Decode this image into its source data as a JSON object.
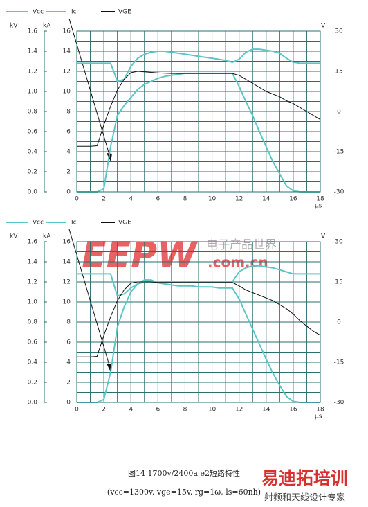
{
  "chart_data": [
    {
      "type": "line",
      "legend": [
        "Vcc",
        "Ic",
        "VGE"
      ],
      "ylabel": "kV",
      "y3label": "kA",
      "y2label": "V",
      "xlabel": "µs",
      "xlim": [
        0,
        18
      ],
      "xticks": [
        0,
        2,
        4,
        6,
        8,
        10,
        12,
        14,
        16,
        18
      ],
      "xminorticks": [
        1,
        3,
        5,
        7,
        9,
        11,
        13,
        15,
        17
      ],
      "ylim": [
        0,
        1.6
      ],
      "yticks": [
        {
          "value": 0,
          "label": "0.0"
        },
        0.2,
        0.4,
        0.6,
        0.8,
        {
          "value": 1,
          "label": "1.0"
        },
        1.2,
        1.4,
        1.6
      ],
      "y3lim": [
        0,
        16
      ],
      "y3ticks": [
        0,
        2,
        4,
        6,
        8,
        10,
        12,
        14,
        16
      ],
      "y3minorticks": [
        1,
        3,
        5,
        7,
        9,
        11,
        13,
        15
      ],
      "y2lim": [
        -30,
        30
      ],
      "y2ticks": [
        30,
        15,
        0,
        -15,
        -30
      ],
      "grid": true,
      "x": [
        0,
        0.5,
        1,
        1.5,
        2,
        2.5,
        3,
        3.5,
        4,
        4.5,
        5,
        5.5,
        6,
        6.5,
        7,
        7.5,
        8,
        8.5,
        9,
        9.5,
        10,
        10.5,
        11,
        11.5,
        12,
        12.5,
        13,
        13.5,
        14,
        14.5,
        15,
        15.5,
        16,
        16.5,
        17,
        17.5,
        18
      ],
      "series": [
        {
          "name": "Vcc",
          "color": "#5cc6c6",
          "axis": "y",
          "values": [
            1.28,
            1.28,
            1.28,
            1.28,
            1.28,
            1.28,
            1.1,
            1.12,
            1.25,
            1.33,
            1.37,
            1.39,
            1.4,
            1.4,
            1.39,
            1.38,
            1.37,
            1.36,
            1.35,
            1.34,
            1.33,
            1.32,
            1.31,
            1.29,
            1.32,
            1.39,
            1.42,
            1.42,
            1.41,
            1.4,
            1.38,
            1.33,
            1.29,
            1.28,
            1.28,
            1.28,
            1.28
          ]
        },
        {
          "name": "Ic",
          "color": "#5cc6c6",
          "axis": "y3",
          "values": [
            0,
            0,
            0,
            0,
            0.3,
            4.5,
            7.6,
            8.6,
            9.4,
            10.2,
            10.7,
            11,
            11.3,
            11.5,
            11.6,
            11.7,
            11.8,
            11.8,
            11.8,
            11.8,
            11.8,
            11.8,
            11.8,
            11.8,
            10.5,
            9,
            7.6,
            6,
            4.5,
            3,
            1.8,
            0.6,
            0.1,
            0,
            0,
            0,
            0
          ]
        },
        {
          "name": "VGE",
          "color": "#111111",
          "axis": "y2",
          "values": [
            -13,
            -13,
            -13,
            -12.8,
            -5,
            2,
            8,
            12,
            14.5,
            15,
            14.8,
            14.6,
            14.4,
            14.3,
            14.2,
            14.2,
            14.2,
            14.2,
            14.2,
            14.2,
            14.2,
            14.2,
            14.2,
            14.2,
            13.5,
            12,
            10.5,
            9,
            7.5,
            6.5,
            5.5,
            4,
            3,
            1.5,
            0,
            -1.5,
            -3
          ]
        }
      ]
    },
    {
      "type": "line",
      "legend": [
        "Vcc",
        "Ic",
        "VGE"
      ],
      "ylabel": "kV",
      "y3label": "kA",
      "y2label": "V",
      "xlabel": "µs",
      "xlim": [
        0,
        18
      ],
      "xticks": [
        0,
        2,
        4,
        6,
        8,
        10,
        12,
        14,
        16,
        18
      ],
      "xminorticks": [
        1,
        3,
        5,
        7,
        9,
        11,
        13,
        15,
        17
      ],
      "ylim": [
        0,
        1.6
      ],
      "yticks": [
        {
          "value": 0,
          "label": "0.0"
        },
        0.2,
        0.4,
        0.6,
        0.8,
        {
          "value": 1,
          "label": "1.0"
        },
        1.2,
        1.4,
        1.6
      ],
      "y3lim": [
        0,
        16
      ],
      "y3ticks": [
        0,
        2,
        4,
        6,
        8,
        10,
        12,
        14,
        16
      ],
      "y3minorticks": [
        1,
        3,
        5,
        7,
        9,
        11,
        13,
        15
      ],
      "y2lim": [
        -30,
        30
      ],
      "y2ticks": [
        30,
        15,
        0,
        -15,
        -30
      ],
      "grid": true,
      "x": [
        0,
        0.5,
        1,
        1.5,
        2,
        2.5,
        3,
        3.5,
        4,
        4.5,
        5,
        5.5,
        6,
        6.5,
        7,
        7.5,
        8,
        8.5,
        9,
        9.5,
        10,
        10.5,
        11,
        11.5,
        12,
        12.5,
        13,
        13.5,
        14,
        14.5,
        15,
        15.5,
        16,
        16.5,
        17,
        17.5,
        18
      ],
      "series": [
        {
          "name": "Vcc",
          "color": "#5cc6c6",
          "axis": "y",
          "values": [
            1.28,
            1.28,
            1.28,
            1.28,
            1.28,
            1.28,
            1.06,
            1.08,
            1.14,
            1.18,
            1.2,
            1.2,
            1.2,
            1.2,
            1.2,
            1.2,
            1.2,
            1.2,
            1.2,
            1.2,
            1.2,
            1.2,
            1.2,
            1.2,
            1.3,
            1.34,
            1.36,
            1.36,
            1.35,
            1.34,
            1.32,
            1.3,
            1.28,
            1.28,
            1.28,
            1.28,
            1.28
          ]
        },
        {
          "name": "Ic",
          "color": "#5cc6c6",
          "axis": "y3",
          "values": [
            0,
            0,
            0,
            0,
            0.3,
            3,
            7.5,
            9.5,
            11,
            11.8,
            12.2,
            12.2,
            11.9,
            11.8,
            11.7,
            11.6,
            11.6,
            11.6,
            11.5,
            11.5,
            11.5,
            11.4,
            11.4,
            11.4,
            10.3,
            8.8,
            7.3,
            5.8,
            4.3,
            2.9,
            1.7,
            0.6,
            0.1,
            0,
            0,
            0,
            0
          ]
        },
        {
          "name": "VGE",
          "color": "#111111",
          "axis": "y2",
          "values": [
            -13,
            -13,
            -13,
            -12.8,
            -5,
            2,
            8,
            12,
            14.5,
            15,
            15,
            15,
            14.8,
            14.8,
            14.8,
            14.8,
            14.8,
            14.8,
            14.8,
            14.8,
            14.8,
            14.8,
            14.8,
            14.8,
            13.5,
            12,
            11,
            10,
            9,
            8,
            6.5,
            5,
            3,
            0.5,
            -1.5,
            -3.5,
            -4.9
          ]
        }
      ]
    }
  ],
  "caption": {
    "title": "图14 1700v/2400a e2短路特性",
    "conditions": "(vcc=1300v, vge=15v, rg=1ω, ls=60nh)"
  },
  "watermarks": {
    "brand": "EEPW",
    "domain": ".com.cn",
    "brand_cn": "电子产品世界",
    "training": "易迪拓培训",
    "slogan": "射频和天线设计专家"
  }
}
